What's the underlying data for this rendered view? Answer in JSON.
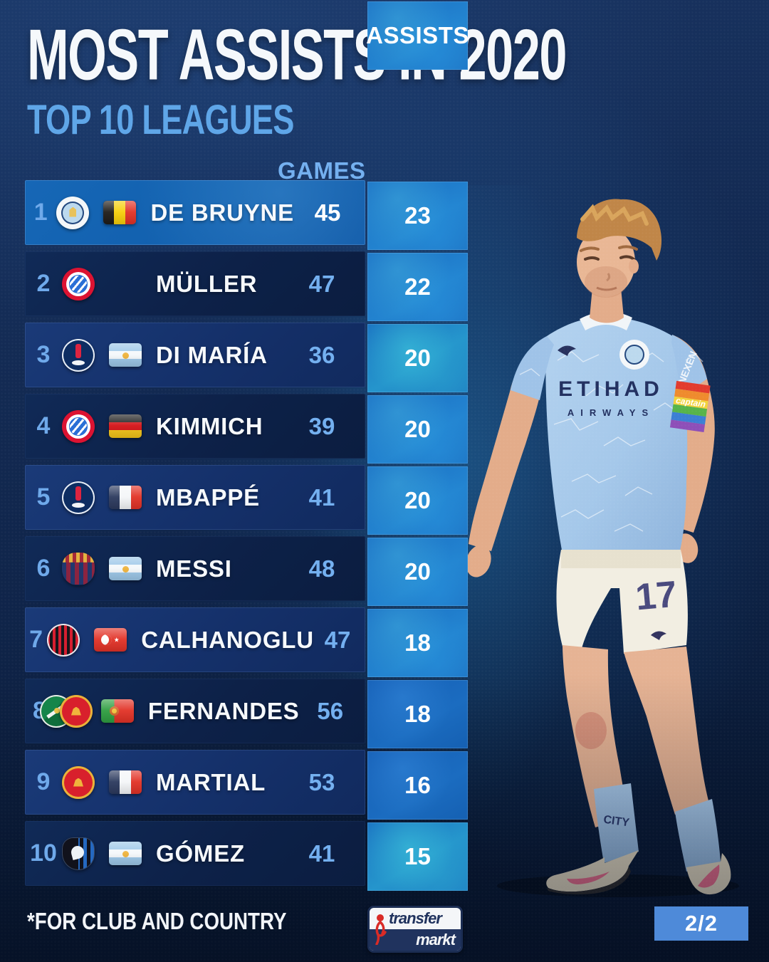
{
  "chart_data": {
    "type": "table",
    "title": "MOST ASSISTS IN 2020",
    "subtitle": "TOP 10 LEAGUES",
    "note": "*FOR CLUB AND COUNTRY",
    "columns": [
      "RANK",
      "CLUB",
      "COUNTRY",
      "PLAYER",
      "GAMES",
      "ASSISTS"
    ],
    "rows": [
      [
        1,
        "Manchester City",
        "Belgium",
        "DE BRUYNE",
        45,
        23
      ],
      [
        2,
        "Bayern Munich",
        "",
        "MÜLLER",
        47,
        22
      ],
      [
        3,
        "Paris Saint-Germain",
        "Argentina",
        "DI MARÍA",
        36,
        20
      ],
      [
        4,
        "Bayern Munich",
        "Germany",
        "KIMMICH",
        39,
        20
      ],
      [
        5,
        "Paris Saint-Germain",
        "France",
        "MBAPPÉ",
        41,
        20
      ],
      [
        6,
        "Barcelona",
        "Argentina",
        "MESSI",
        48,
        20
      ],
      [
        7,
        "AC Milan",
        "Turkey",
        "CALHANOGLU",
        47,
        18
      ],
      [
        8,
        "Sporting CP / Manchester United",
        "Portugal",
        "FERNANDES",
        56,
        18
      ],
      [
        9,
        "Manchester United",
        "France",
        "MARTIAL",
        53,
        16
      ],
      [
        10,
        "Atalanta",
        "Argentina",
        "GÓMEZ",
        41,
        15
      ]
    ]
  },
  "header": {
    "title": "MOST ASSISTS IN 2020",
    "subtitle": "TOP 10 LEAGUES"
  },
  "table": {
    "headers": {
      "games": "GAMES",
      "assists": "ASSISTS"
    },
    "rows": [
      {
        "rank": "1",
        "club": "manchester-city",
        "club2": "",
        "flag": "belgium",
        "player": "DE BRUYNE",
        "games": "45",
        "assists": "23"
      },
      {
        "rank": "2",
        "club": "bayern-munich",
        "club2": "",
        "flag": "",
        "player": "MÜLLER",
        "games": "47",
        "assists": "22"
      },
      {
        "rank": "3",
        "club": "psg",
        "club2": "",
        "flag": "argentina",
        "player": "DI MARÍA",
        "games": "36",
        "assists": "20"
      },
      {
        "rank": "4",
        "club": "bayern-munich",
        "club2": "",
        "flag": "germany",
        "player": "KIMMICH",
        "games": "39",
        "assists": "20"
      },
      {
        "rank": "5",
        "club": "psg",
        "club2": "",
        "flag": "france",
        "player": "MBAPPÉ",
        "games": "41",
        "assists": "20"
      },
      {
        "rank": "6",
        "club": "barcelona",
        "club2": "",
        "flag": "argentina",
        "player": "MESSI",
        "games": "48",
        "assists": "20"
      },
      {
        "rank": "7",
        "club": "ac-milan",
        "club2": "",
        "flag": "turkey",
        "player": "CALHANOGLU",
        "games": "47",
        "assists": "18"
      },
      {
        "rank": "8",
        "club": "sporting-cp",
        "club2": "manchester-united",
        "flag": "portugal",
        "player": "FERNANDES",
        "games": "56",
        "assists": "18"
      },
      {
        "rank": "9",
        "club": "manchester-united",
        "club2": "",
        "flag": "france",
        "player": "MARTIAL",
        "games": "53",
        "assists": "16"
      },
      {
        "rank": "10",
        "club": "atalanta",
        "club2": "",
        "flag": "argentina",
        "player": "GÓMEZ",
        "games": "41",
        "assists": "15"
      }
    ]
  },
  "player_image": {
    "description": "Kevin De Bruyne in Manchester City home kit",
    "shirt_sponsor_line1": "ETIHAD",
    "shirt_sponsor_line2": "AIRWAYS",
    "sleeve_text": "NEXEN",
    "armband_text": "captain",
    "shorts_number": "17",
    "sock_text": "CITY"
  },
  "footer": {
    "note": "*FOR CLUB AND COUNTRY",
    "brand_top": "transfer",
    "brand_bottom": "markt",
    "page_indicator": "2/2"
  },
  "colors": {
    "background": "#0f2449",
    "accent_blue": "#5fa6e8",
    "highlight_row": "#1365b5",
    "assists_cell": "#1e78c8",
    "page_badge_bg": "#4e8ad9",
    "brand_red": "#e0392e"
  }
}
